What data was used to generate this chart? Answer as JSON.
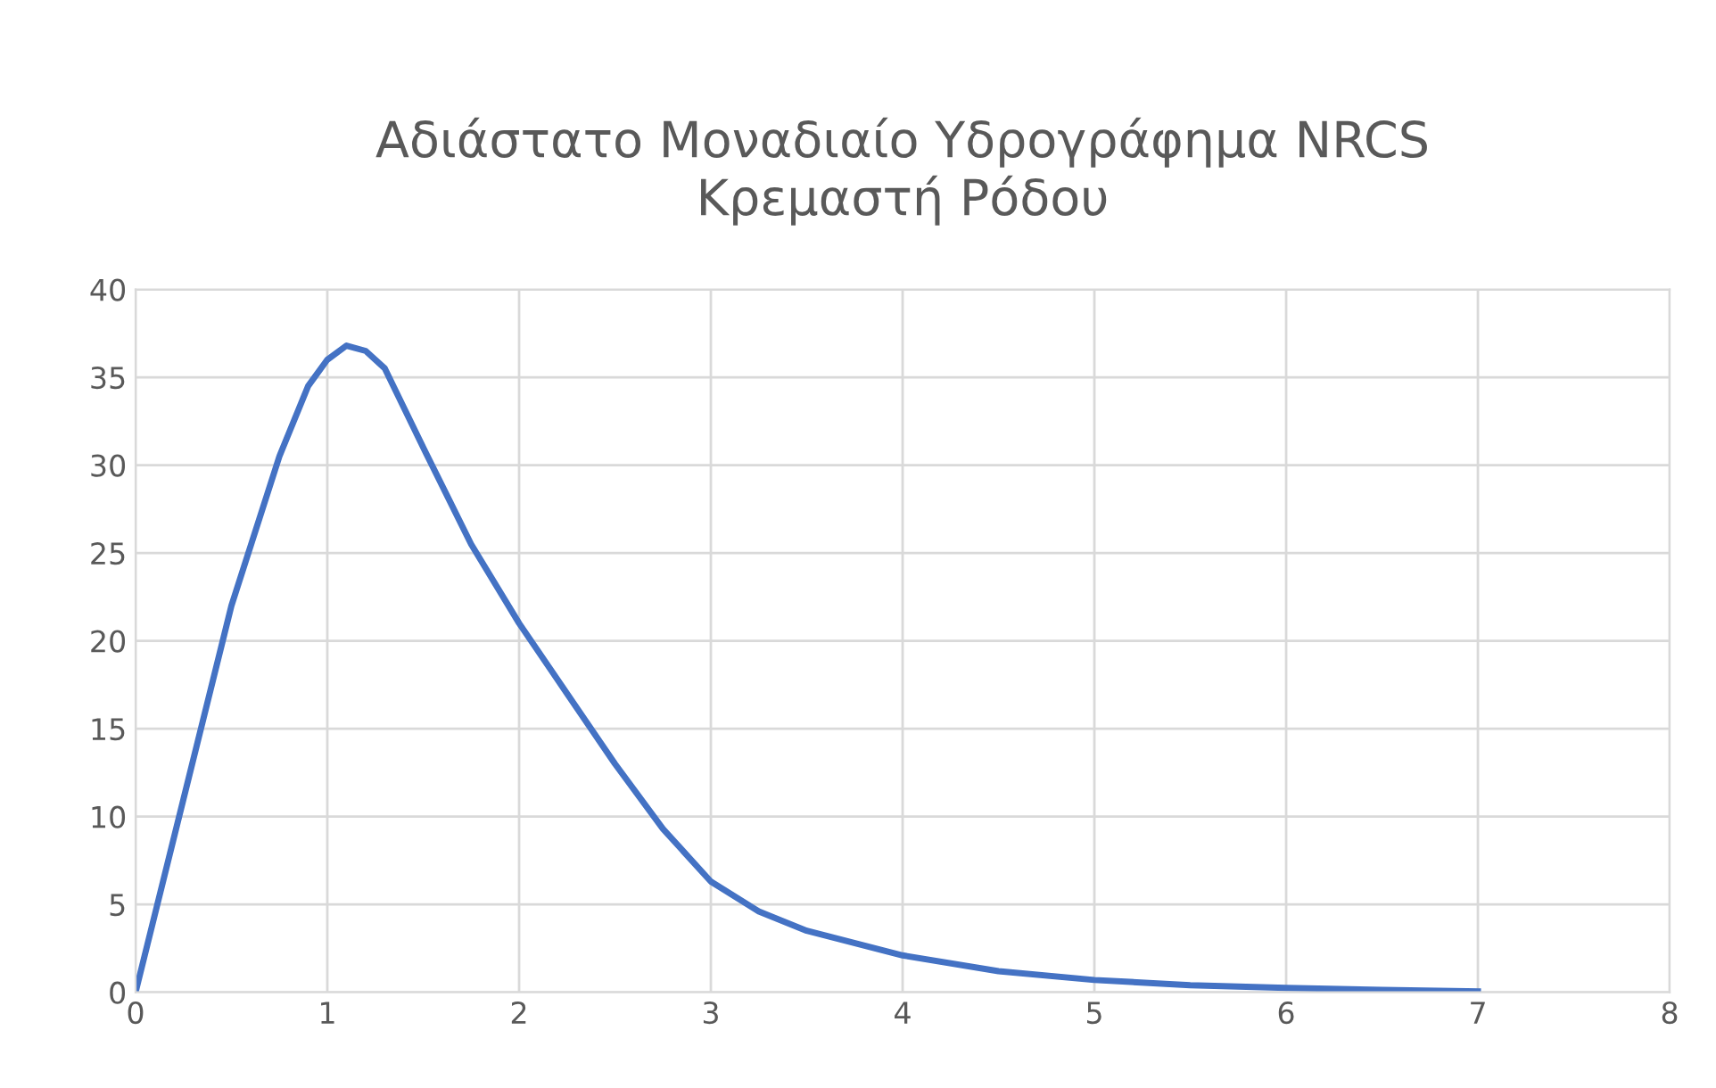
{
  "chart_data": {
    "type": "line",
    "title": "Αδιάστατο Μοναδιαίο Υδρογράφημα NRCS\nΚρεμαστή Ρόδου",
    "series": [
      {
        "color": "#4472c4",
        "x": [
          0,
          0.25,
          0.5,
          0.75,
          0.9,
          1,
          1.1,
          1.2,
          1.3,
          1.5,
          1.75,
          2,
          2.25,
          2.5,
          2.75,
          3,
          3.25,
          3.5,
          4,
          4.5,
          5,
          5.5,
          6,
          6.5,
          7
        ],
        "values": [
          0,
          11,
          22,
          30.5,
          34.5,
          36,
          36.8,
          36.5,
          35.5,
          31,
          25.5,
          21,
          17,
          13,
          9.3,
          6.3,
          4.6,
          3.5,
          2.1,
          1.2,
          0.7,
          0.4,
          0.25,
          0.13,
          0.05
        ]
      }
    ],
    "xlim": [
      0,
      8
    ],
    "xticks": [
      0,
      1,
      2,
      3,
      4,
      5,
      6,
      7,
      8
    ],
    "ylim": [
      0,
      40
    ],
    "yticks": [
      0,
      5,
      10,
      15,
      20,
      25,
      30,
      35,
      40
    ],
    "grid": true,
    "marker": "none",
    "line_style": "solid"
  }
}
